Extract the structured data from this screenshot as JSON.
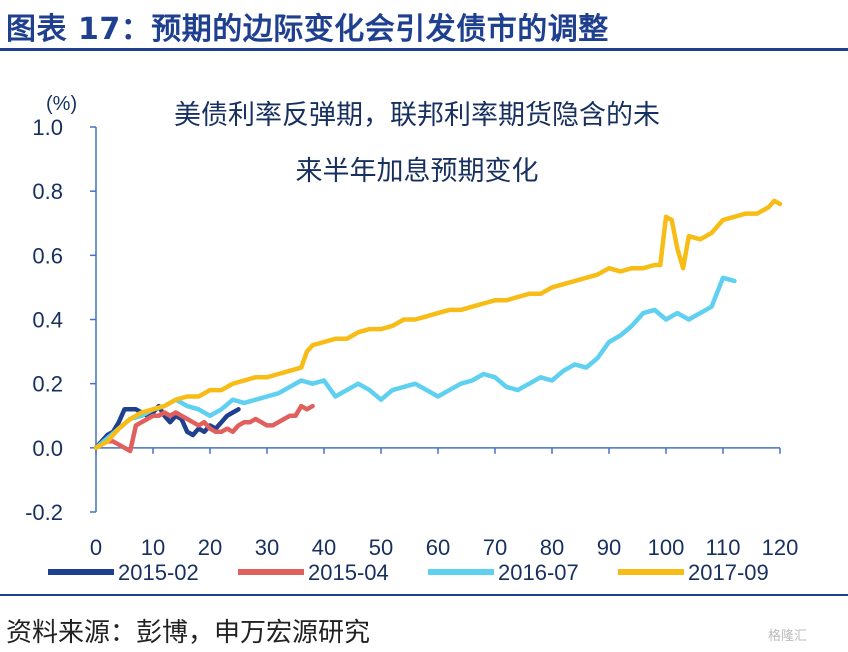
{
  "header": {
    "title": "图表 17：预期的边际变化会引发债市的调整"
  },
  "footer": {
    "source": "资料来源：彭博，申万宏源研究",
    "watermark": "格隆汇"
  },
  "chart_data": {
    "type": "line",
    "title": "图表 17：预期的边际变化会引发债市的调整",
    "unit_label": "(%)",
    "annotation": [
      "美债利率反弹期，联邦利率期货隐含的未",
      "来半年加息预期变化"
    ],
    "xlabel": "",
    "ylabel": "",
    "xlim": [
      0,
      120
    ],
    "ylim": [
      -0.2,
      1.0
    ],
    "x_ticks": [
      0,
      10,
      20,
      30,
      40,
      50,
      60,
      70,
      80,
      90,
      100,
      110,
      120
    ],
    "y_ticks": [
      -0.2,
      0.0,
      0.2,
      0.4,
      0.6,
      0.8,
      1.0
    ],
    "y_tick_labels": [
      "-0.2",
      "0.0",
      "0.2",
      "0.4",
      "0.6",
      "0.8",
      "1.0"
    ],
    "grid": false,
    "legend_position": "bottom",
    "series": [
      {
        "name": "2015-02",
        "color": "#1f3f8f",
        "points": [
          [
            0,
            0
          ],
          [
            1,
            0.02
          ],
          [
            2,
            0.04
          ],
          [
            3,
            0.05
          ],
          [
            4,
            0.08
          ],
          [
            5,
            0.12
          ],
          [
            6,
            0.12
          ],
          [
            7,
            0.12
          ],
          [
            8,
            0.11
          ],
          [
            9,
            0.1
          ],
          [
            10,
            0.11
          ],
          [
            11,
            0.13
          ],
          [
            12,
            0.1
          ],
          [
            13,
            0.08
          ],
          [
            14,
            0.1
          ],
          [
            15,
            0.09
          ],
          [
            16,
            0.05
          ],
          [
            17,
            0.04
          ],
          [
            18,
            0.06
          ],
          [
            19,
            0.05
          ],
          [
            20,
            0.07
          ],
          [
            21,
            0.06
          ],
          [
            22,
            0.08
          ],
          [
            23,
            0.1
          ],
          [
            24,
            0.11
          ],
          [
            25,
            0.12
          ]
        ]
      },
      {
        "name": "2015-04",
        "color": "#e0605e",
        "points": [
          [
            0,
            0
          ],
          [
            1,
            0.01
          ],
          [
            2,
            0.02
          ],
          [
            3,
            0.02
          ],
          [
            4,
            0.01
          ],
          [
            5,
            0.0
          ],
          [
            6,
            -0.01
          ],
          [
            7,
            0.07
          ],
          [
            8,
            0.08
          ],
          [
            9,
            0.09
          ],
          [
            10,
            0.1
          ],
          [
            11,
            0.1
          ],
          [
            12,
            0.11
          ],
          [
            13,
            0.1
          ],
          [
            14,
            0.11
          ],
          [
            15,
            0.1
          ],
          [
            16,
            0.09
          ],
          [
            17,
            0.08
          ],
          [
            18,
            0.07
          ],
          [
            19,
            0.08
          ],
          [
            20,
            0.06
          ],
          [
            21,
            0.05
          ],
          [
            22,
            0.05
          ],
          [
            23,
            0.06
          ],
          [
            24,
            0.05
          ],
          [
            25,
            0.07
          ],
          [
            26,
            0.08
          ],
          [
            27,
            0.08
          ],
          [
            28,
            0.09
          ],
          [
            29,
            0.08
          ],
          [
            30,
            0.07
          ],
          [
            31,
            0.07
          ],
          [
            32,
            0.08
          ],
          [
            33,
            0.09
          ],
          [
            34,
            0.1
          ],
          [
            35,
            0.1
          ],
          [
            36,
            0.13
          ],
          [
            37,
            0.12
          ],
          [
            38,
            0.13
          ]
        ]
      },
      {
        "name": "2016-07",
        "color": "#5fd0f0",
        "points": [
          [
            0,
            0
          ],
          [
            2,
            0.03
          ],
          [
            4,
            0.06
          ],
          [
            6,
            0.09
          ],
          [
            8,
            0.1
          ],
          [
            10,
            0.12
          ],
          [
            12,
            0.13
          ],
          [
            14,
            0.15
          ],
          [
            16,
            0.13
          ],
          [
            18,
            0.12
          ],
          [
            20,
            0.1
          ],
          [
            22,
            0.12
          ],
          [
            24,
            0.15
          ],
          [
            26,
            0.14
          ],
          [
            28,
            0.15
          ],
          [
            30,
            0.16
          ],
          [
            32,
            0.17
          ],
          [
            34,
            0.19
          ],
          [
            36,
            0.21
          ],
          [
            38,
            0.2
          ],
          [
            40,
            0.21
          ],
          [
            42,
            0.16
          ],
          [
            44,
            0.18
          ],
          [
            46,
            0.2
          ],
          [
            48,
            0.18
          ],
          [
            50,
            0.15
          ],
          [
            52,
            0.18
          ],
          [
            54,
            0.19
          ],
          [
            56,
            0.2
          ],
          [
            58,
            0.18
          ],
          [
            60,
            0.16
          ],
          [
            62,
            0.18
          ],
          [
            64,
            0.2
          ],
          [
            66,
            0.21
          ],
          [
            68,
            0.23
          ],
          [
            70,
            0.22
          ],
          [
            72,
            0.19
          ],
          [
            74,
            0.18
          ],
          [
            76,
            0.2
          ],
          [
            78,
            0.22
          ],
          [
            80,
            0.21
          ],
          [
            82,
            0.24
          ],
          [
            84,
            0.26
          ],
          [
            86,
            0.25
          ],
          [
            88,
            0.28
          ],
          [
            90,
            0.33
          ],
          [
            92,
            0.35
          ],
          [
            94,
            0.38
          ],
          [
            96,
            0.42
          ],
          [
            98,
            0.43
          ],
          [
            100,
            0.4
          ],
          [
            102,
            0.42
          ],
          [
            104,
            0.4
          ],
          [
            106,
            0.42
          ],
          [
            108,
            0.44
          ],
          [
            110,
            0.53
          ],
          [
            112,
            0.52
          ]
        ]
      },
      {
        "name": "2017-09",
        "color": "#f7bd16",
        "points": [
          [
            0,
            0
          ],
          [
            2,
            0.02
          ],
          [
            4,
            0.06
          ],
          [
            6,
            0.09
          ],
          [
            8,
            0.11
          ],
          [
            10,
            0.12
          ],
          [
            12,
            0.13
          ],
          [
            14,
            0.15
          ],
          [
            16,
            0.16
          ],
          [
            18,
            0.16
          ],
          [
            20,
            0.18
          ],
          [
            22,
            0.18
          ],
          [
            24,
            0.2
          ],
          [
            26,
            0.21
          ],
          [
            28,
            0.22
          ],
          [
            30,
            0.22
          ],
          [
            32,
            0.23
          ],
          [
            34,
            0.24
          ],
          [
            36,
            0.25
          ],
          [
            37,
            0.3
          ],
          [
            38,
            0.32
          ],
          [
            40,
            0.33
          ],
          [
            42,
            0.34
          ],
          [
            44,
            0.34
          ],
          [
            46,
            0.36
          ],
          [
            48,
            0.37
          ],
          [
            50,
            0.37
          ],
          [
            52,
            0.38
          ],
          [
            54,
            0.4
          ],
          [
            56,
            0.4
          ],
          [
            58,
            0.41
          ],
          [
            60,
            0.42
          ],
          [
            62,
            0.43
          ],
          [
            64,
            0.43
          ],
          [
            66,
            0.44
          ],
          [
            68,
            0.45
          ],
          [
            70,
            0.46
          ],
          [
            72,
            0.46
          ],
          [
            74,
            0.47
          ],
          [
            76,
            0.48
          ],
          [
            78,
            0.48
          ],
          [
            80,
            0.5
          ],
          [
            82,
            0.51
          ],
          [
            84,
            0.52
          ],
          [
            86,
            0.53
          ],
          [
            88,
            0.54
          ],
          [
            90,
            0.56
          ],
          [
            92,
            0.55
          ],
          [
            94,
            0.56
          ],
          [
            96,
            0.56
          ],
          [
            98,
            0.57
          ],
          [
            99,
            0.57
          ],
          [
            100,
            0.72
          ],
          [
            101,
            0.71
          ],
          [
            102,
            0.62
          ],
          [
            103,
            0.56
          ],
          [
            104,
            0.66
          ],
          [
            106,
            0.65
          ],
          [
            108,
            0.67
          ],
          [
            110,
            0.71
          ],
          [
            112,
            0.72
          ],
          [
            114,
            0.73
          ],
          [
            116,
            0.73
          ],
          [
            118,
            0.75
          ],
          [
            119,
            0.77
          ],
          [
            120,
            0.76
          ]
        ]
      }
    ]
  }
}
